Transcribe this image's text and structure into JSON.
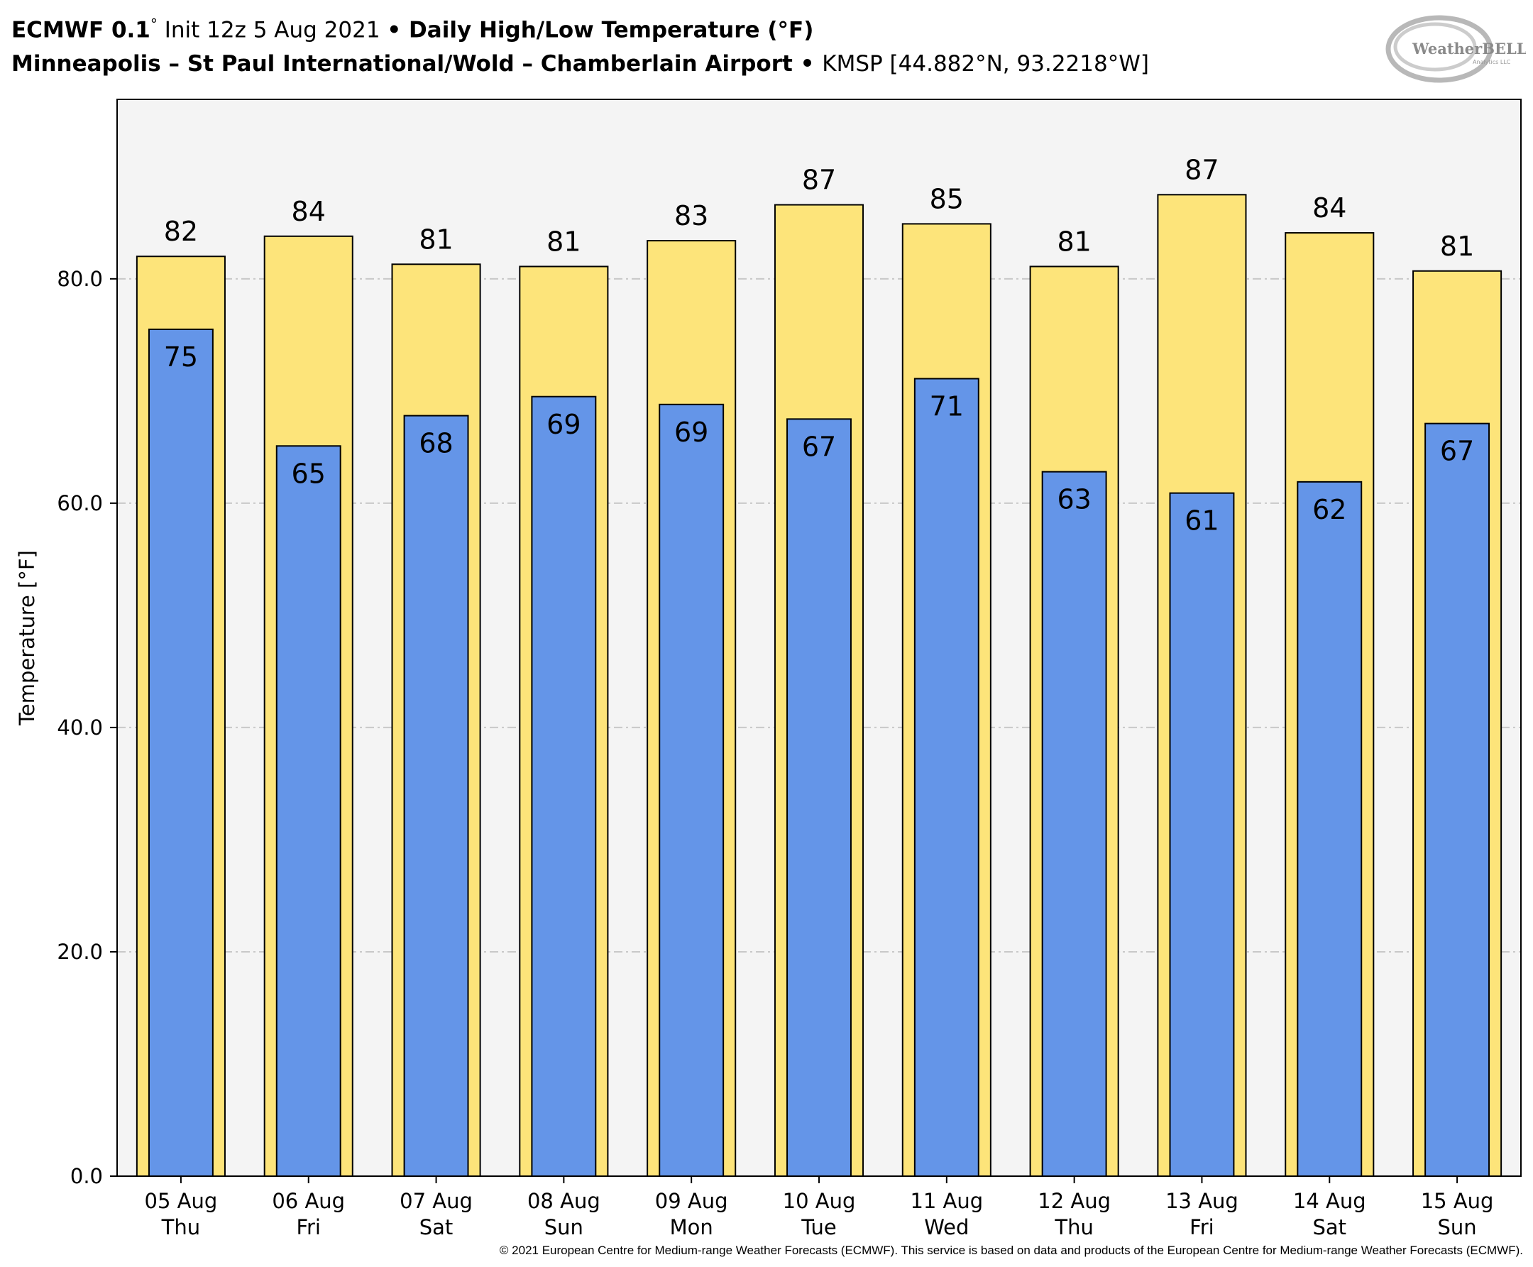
{
  "header": {
    "line1": {
      "model": "ECMWF 0.1",
      "model_deg": "°",
      "init": " Init 12z 5 Aug 2021 ",
      "sep": "•",
      "title": " Daily High/Low Temperature (°F)"
    },
    "line2": {
      "station": "Minneapolis – St Paul International/Wold – Chamberlain Airport",
      "sep": " • ",
      "code": "KMSP [44.882°N, 93.2218°W]"
    }
  },
  "logo": {
    "text": "WeatherBELL",
    "subtext": "Analytics LLC"
  },
  "copyright": "© 2021 European Centre for Medium-range Weather Forecasts (ECMWF). This service is based on data and products of the European Centre for Medium-range Weather Forecasts (ECMWF).",
  "colors": {
    "high": "#FDE47A",
    "low": "#6495E8",
    "plot_bg": "#F4F4F4",
    "grid": "#C8C8C8"
  },
  "chart_data": {
    "type": "bar",
    "ylabel": "Temperature [°F]",
    "ylim": [
      0,
      96
    ],
    "yticks": [
      0,
      20,
      40,
      60,
      80
    ],
    "ytick_labels": [
      "0.0",
      "20.0",
      "40.0",
      "60.0",
      "80.0"
    ],
    "grid": true,
    "categories": [
      [
        "05 Aug",
        "Thu"
      ],
      [
        "06 Aug",
        "Fri"
      ],
      [
        "07 Aug",
        "Sat"
      ],
      [
        "08 Aug",
        "Sun"
      ],
      [
        "09 Aug",
        "Mon"
      ],
      [
        "10 Aug",
        "Tue"
      ],
      [
        "11 Aug",
        "Wed"
      ],
      [
        "12 Aug",
        "Thu"
      ],
      [
        "13 Aug",
        "Fri"
      ],
      [
        "14 Aug",
        "Sat"
      ],
      [
        "15 Aug",
        "Sun"
      ]
    ],
    "series": [
      {
        "values": [
          82.0,
          83.8,
          81.3,
          81.1,
          83.4,
          86.6,
          84.9,
          81.1,
          87.5,
          84.1,
          80.7
        ],
        "labels": [
          "82",
          "84",
          "81",
          "81",
          "83",
          "87",
          "85",
          "81",
          "87",
          "84",
          "81"
        ]
      },
      {
        "values": [
          75.5,
          65.1,
          67.8,
          69.5,
          68.8,
          67.5,
          71.1,
          62.8,
          60.9,
          61.9,
          67.1
        ],
        "labels": [
          "75",
          "65",
          "68",
          "69",
          "69",
          "67",
          "71",
          "63",
          "61",
          "62",
          "67"
        ]
      }
    ]
  }
}
